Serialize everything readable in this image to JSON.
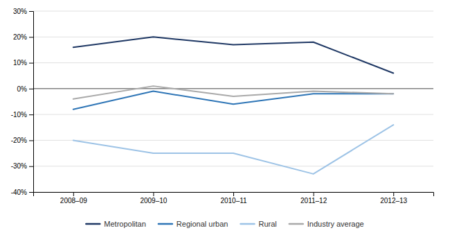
{
  "chart_data": {
    "type": "line",
    "categories": [
      "2008–09",
      "2009–10",
      "2010–11",
      "2011–12",
      "2012–13"
    ],
    "series": [
      {
        "name": "Metropolitan",
        "color": "#1f3864",
        "values": [
          16,
          20,
          17,
          18,
          6
        ]
      },
      {
        "name": "Regional urban",
        "color": "#2e75b6",
        "values": [
          -8,
          -1,
          -6,
          -2,
          -2
        ]
      },
      {
        "name": "Rural",
        "color": "#9dc3e6",
        "values": [
          -20,
          -25,
          -25,
          -33,
          -14
        ]
      },
      {
        "name": "Industry average",
        "color": "#a9a9a9",
        "values": [
          -4,
          1,
          -3,
          -1,
          -2
        ]
      }
    ],
    "ylim": [
      -40,
      30
    ],
    "yticks": [
      {
        "value": -40,
        "label": "-40%"
      },
      {
        "value": -30,
        "label": "-30%"
      },
      {
        "value": -20,
        "label": "-20%"
      },
      {
        "value": -10,
        "label": "-10%"
      },
      {
        "value": 0,
        "label": "0%"
      },
      {
        "value": 10,
        "label": "10%"
      },
      {
        "value": 20,
        "label": "20%"
      },
      {
        "value": 30,
        "label": "30%"
      }
    ],
    "grid": true,
    "legend": "bottom"
  }
}
